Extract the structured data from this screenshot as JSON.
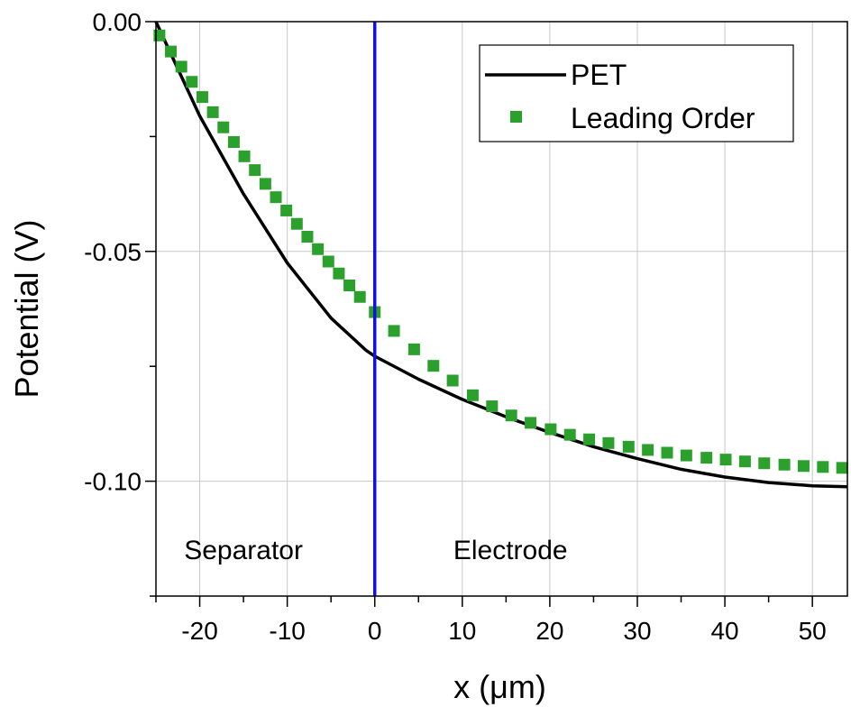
{
  "chart_data": {
    "type": "line",
    "xlabel": "x (μm)",
    "ylabel": "Potential (V)",
    "xlim": [
      -25,
      54
    ],
    "ylim": [
      -0.125,
      0
    ],
    "xticks": [
      -20,
      -10,
      0,
      10,
      20,
      30,
      40,
      50
    ],
    "xtick_labels": [
      "-20",
      "-10",
      "0",
      "10",
      "20",
      "30",
      "40",
      "50"
    ],
    "yticks": [
      0,
      -0.05,
      -0.1
    ],
    "ytick_labels": [
      "0.00",
      "-0.05",
      "-0.10"
    ],
    "grid": true,
    "legend_position": "top-right",
    "series": [
      {
        "name": "PET",
        "style": "line",
        "color": "#000000",
        "x": [
          -25,
          -20,
          -15,
          -10,
          -5,
          -1,
          0,
          5,
          10,
          15,
          20,
          25,
          30,
          35,
          40,
          45,
          50,
          54
        ],
        "y": [
          0,
          -0.0205,
          -0.0375,
          -0.0525,
          -0.0645,
          -0.0715,
          -0.0728,
          -0.0778,
          -0.0822,
          -0.086,
          -0.0894,
          -0.0925,
          -0.0951,
          -0.0974,
          -0.0991,
          -0.1003,
          -0.101,
          -0.1012
        ]
      },
      {
        "name": "Leading Order",
        "style": "marker",
        "color": "#2ca02c",
        "x": [
          -24.6,
          -23.3,
          -22.1,
          -20.9,
          -19.7,
          -18.5,
          -17.3,
          -16.1,
          -14.9,
          -13.7,
          -12.5,
          -11.3,
          -10.1,
          -8.9,
          -7.7,
          -6.5,
          -5.3,
          -4.1,
          -2.9,
          -1.7,
          0,
          2.2,
          4.5,
          6.7,
          8.9,
          11.2,
          13.4,
          15.6,
          17.8,
          20.1,
          22.3,
          24.5,
          26.7,
          29.0,
          31.2,
          33.4,
          35.6,
          37.9,
          40.1,
          42.3,
          44.5,
          46.8,
          49.0,
          51.2,
          53.4
        ],
        "y": [
          -0.003,
          -0.0065,
          -0.0098,
          -0.0131,
          -0.0164,
          -0.0197,
          -0.023,
          -0.0262,
          -0.0293,
          -0.0323,
          -0.0353,
          -0.0382,
          -0.0411,
          -0.044,
          -0.0468,
          -0.0495,
          -0.0522,
          -0.0548,
          -0.0574,
          -0.0599,
          -0.0632,
          -0.0673,
          -0.0713,
          -0.0749,
          -0.0781,
          -0.0813,
          -0.0837,
          -0.0857,
          -0.0873,
          -0.0887,
          -0.0899,
          -0.0909,
          -0.0917,
          -0.0925,
          -0.0932,
          -0.0938,
          -0.0944,
          -0.0949,
          -0.0953,
          -0.0957,
          -0.0961,
          -0.0964,
          -0.0967,
          -0.0969,
          -0.0971
        ]
      }
    ],
    "vline": {
      "x": 0,
      "color": "#1010e0"
    },
    "annotations": [
      {
        "text": "Separator",
        "x": -15,
        "y": -0.117
      },
      {
        "text": "Electrode",
        "x": 15.5,
        "y": -0.117
      }
    ]
  }
}
